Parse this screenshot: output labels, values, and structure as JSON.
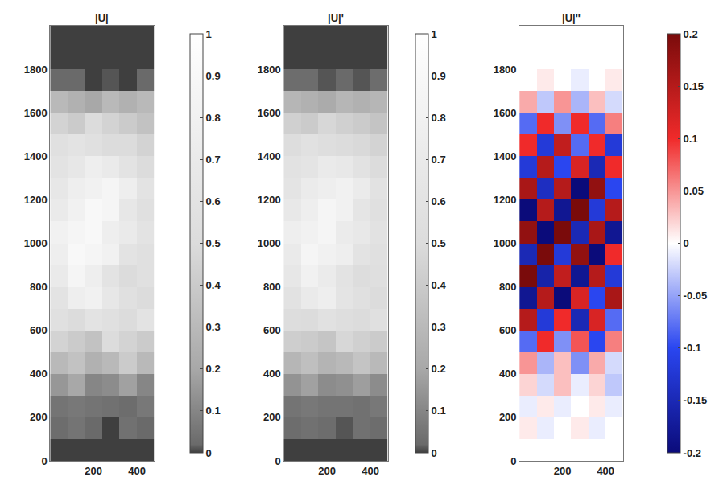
{
  "chart_data": [
    {
      "type": "heatmap",
      "title": "|U|",
      "color": "gray",
      "x": [
        40,
        120,
        200,
        280,
        360,
        440
      ],
      "y": [
        50,
        150,
        250,
        350,
        450,
        550,
        650,
        750,
        850,
        950,
        1050,
        1150,
        1250,
        1350,
        1450,
        1550,
        1650,
        1750,
        1850,
        1950
      ],
      "z": [
        [
          0,
          0,
          0,
          0,
          0,
          0
        ],
        [
          0.03,
          0.05,
          0.02,
          0,
          0.04,
          0.02
        ],
        [
          0.05,
          0.06,
          0.05,
          0.04,
          0.03,
          0.06
        ],
        [
          0.15,
          0.2,
          0.1,
          0.12,
          0.18,
          0.1
        ],
        [
          0.3,
          0.35,
          0.25,
          0.3,
          0.4,
          0.3
        ],
        [
          0.45,
          0.4,
          0.35,
          0.5,
          0.45,
          0.4
        ],
        [
          0.55,
          0.5,
          0.6,
          0.55,
          0.5,
          0.6
        ],
        [
          0.6,
          0.75,
          0.8,
          0.65,
          0.55,
          0.5
        ],
        [
          0.7,
          0.85,
          0.75,
          0.6,
          0.5,
          0.55
        ],
        [
          0.75,
          0.9,
          0.85,
          0.8,
          0.6,
          0.55
        ],
        [
          0.8,
          0.85,
          0.9,
          0.75,
          0.7,
          0.6
        ],
        [
          0.7,
          0.8,
          0.9,
          0.85,
          0.65,
          0.55
        ],
        [
          0.65,
          0.75,
          0.8,
          0.85,
          0.75,
          0.6
        ],
        [
          0.6,
          0.65,
          0.75,
          0.7,
          0.6,
          0.5
        ],
        [
          0.55,
          0.6,
          0.55,
          0.5,
          0.5,
          0.45
        ],
        [
          0.45,
          0.4,
          0.5,
          0.45,
          0.4,
          0.35
        ],
        [
          0.3,
          0.25,
          0.2,
          0.3,
          0.25,
          0.3
        ],
        [
          0.02,
          0.02,
          0,
          0.01,
          0,
          0.02
        ],
        [
          0,
          0,
          0,
          0,
          0,
          0
        ],
        [
          0,
          0,
          0,
          0,
          0,
          0
        ]
      ],
      "xlim": [
        0,
        480
      ],
      "ylim": [
        0,
        2000
      ],
      "xticks": [
        200,
        400
      ],
      "yticks": [
        0,
        200,
        400,
        600,
        800,
        1000,
        1200,
        1400,
        1600,
        1800
      ],
      "colorbar_range": [
        0,
        1
      ],
      "colorbar_ticks": [
        0,
        0.1,
        0.2,
        0.3,
        0.4,
        0.5,
        0.6,
        0.7,
        0.8,
        0.9,
        1
      ]
    },
    {
      "type": "heatmap",
      "title": "|U|'",
      "color": "gray",
      "x": [
        40,
        120,
        200,
        280,
        360,
        440
      ],
      "y": [
        50,
        150,
        250,
        350,
        450,
        550,
        650,
        750,
        850,
        950,
        1050,
        1150,
        1250,
        1350,
        1450,
        1550,
        1650,
        1750,
        1850,
        1950
      ],
      "z": [
        [
          0,
          0,
          0,
          0,
          0,
          0
        ],
        [
          0.03,
          0.04,
          0.03,
          0.01,
          0.04,
          0.03
        ],
        [
          0.05,
          0.06,
          0.05,
          0.05,
          0.04,
          0.06
        ],
        [
          0.14,
          0.18,
          0.12,
          0.13,
          0.17,
          0.12
        ],
        [
          0.28,
          0.33,
          0.27,
          0.3,
          0.36,
          0.3
        ],
        [
          0.42,
          0.4,
          0.37,
          0.47,
          0.43,
          0.4
        ],
        [
          0.52,
          0.5,
          0.57,
          0.53,
          0.5,
          0.56
        ],
        [
          0.58,
          0.7,
          0.75,
          0.62,
          0.55,
          0.5
        ],
        [
          0.66,
          0.8,
          0.72,
          0.6,
          0.52,
          0.54
        ],
        [
          0.7,
          0.85,
          0.8,
          0.75,
          0.6,
          0.55
        ],
        [
          0.75,
          0.8,
          0.85,
          0.72,
          0.67,
          0.58
        ],
        [
          0.67,
          0.76,
          0.85,
          0.8,
          0.63,
          0.55
        ],
        [
          0.62,
          0.72,
          0.76,
          0.8,
          0.72,
          0.58
        ],
        [
          0.58,
          0.62,
          0.7,
          0.67,
          0.58,
          0.5
        ],
        [
          0.52,
          0.57,
          0.53,
          0.5,
          0.48,
          0.45
        ],
        [
          0.43,
          0.4,
          0.47,
          0.43,
          0.4,
          0.36
        ],
        [
          0.28,
          0.25,
          0.22,
          0.28,
          0.25,
          0.28
        ],
        [
          0.03,
          0.03,
          0.01,
          0.02,
          0.01,
          0.03
        ],
        [
          0,
          0,
          0,
          0,
          0,
          0
        ],
        [
          0,
          0,
          0,
          0,
          0,
          0
        ]
      ],
      "xlim": [
        0,
        480
      ],
      "ylim": [
        0,
        2000
      ],
      "xticks": [
        200,
        400
      ],
      "yticks": [
        0,
        200,
        400,
        600,
        800,
        1000,
        1200,
        1400,
        1600,
        1800
      ],
      "colorbar_range": [
        0,
        1
      ],
      "colorbar_ticks": [
        0,
        0.1,
        0.2,
        0.3,
        0.4,
        0.5,
        0.6,
        0.7,
        0.8,
        0.9,
        1
      ]
    },
    {
      "type": "heatmap",
      "title": "|U|''",
      "color": "RdBu",
      "x": [
        40,
        120,
        200,
        280,
        360,
        440
      ],
      "y": [
        50,
        150,
        250,
        350,
        450,
        550,
        650,
        750,
        850,
        950,
        1050,
        1150,
        1250,
        1350,
        1450,
        1550,
        1650,
        1750,
        1850,
        1950
      ],
      "z": [
        [
          0,
          0,
          0,
          0,
          0,
          0
        ],
        [
          0.01,
          -0.01,
          0,
          0.01,
          -0.01,
          0
        ],
        [
          -0.01,
          0.01,
          -0.01,
          0,
          0.01,
          -0.01
        ],
        [
          0.02,
          -0.02,
          0.03,
          -0.01,
          0.02,
          -0.03
        ],
        [
          0.05,
          -0.04,
          0.03,
          -0.06,
          0.04,
          -0.02
        ],
        [
          -0.08,
          0.1,
          -0.06,
          0.08,
          -0.1,
          0.06
        ],
        [
          0.15,
          -0.12,
          0.1,
          -0.15,
          0.12,
          -0.08
        ],
        [
          -0.18,
          0.15,
          -0.2,
          0.12,
          -0.1,
          0.16
        ],
        [
          0.2,
          -0.16,
          0.14,
          -0.18,
          0.15,
          -0.12
        ],
        [
          -0.15,
          0.2,
          -0.12,
          0.18,
          -0.2,
          0.1
        ],
        [
          0.18,
          -0.2,
          0.2,
          -0.15,
          0.16,
          -0.18
        ],
        [
          -0.2,
          0.15,
          -0.18,
          0.2,
          -0.12,
          0.15
        ],
        [
          0.16,
          -0.14,
          0.15,
          -0.2,
          0.18,
          -0.1
        ],
        [
          -0.12,
          0.15,
          -0.1,
          0.12,
          -0.15,
          0.1
        ],
        [
          0.1,
          -0.12,
          0.14,
          -0.08,
          0.1,
          -0.12
        ],
        [
          -0.08,
          0.1,
          -0.06,
          0.1,
          -0.08,
          0.06
        ],
        [
          0.04,
          -0.03,
          0.05,
          -0.04,
          0.03,
          -0.02
        ],
        [
          0,
          0.01,
          0,
          -0.01,
          0,
          0.01
        ],
        [
          0,
          0,
          0,
          0,
          0,
          0
        ],
        [
          0,
          0,
          0,
          0,
          0,
          0
        ]
      ],
      "xlim": [
        0,
        480
      ],
      "ylim": [
        0,
        2000
      ],
      "xticks": [
        200,
        400
      ],
      "yticks": [
        0,
        200,
        400,
        600,
        800,
        1000,
        1200,
        1400,
        1600,
        1800
      ],
      "colorbar_range": [
        -0.2,
        0.2
      ],
      "colorbar_ticks": [
        -0.2,
        -0.15,
        -0.1,
        -0.05,
        0,
        0.05,
        0.1,
        0.15,
        0.2
      ]
    }
  ]
}
